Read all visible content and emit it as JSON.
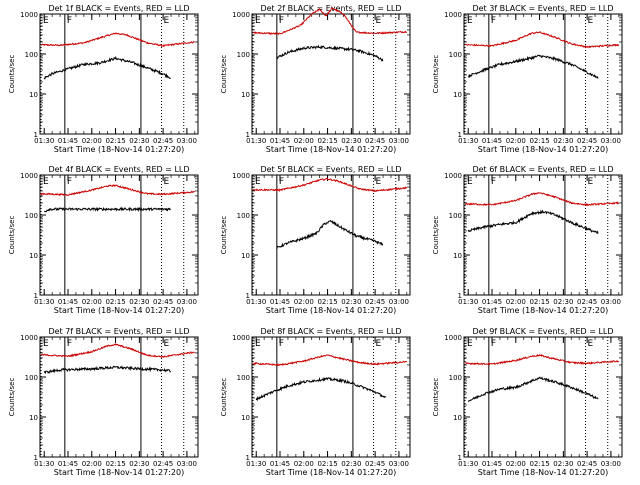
{
  "chart_data": {
    "type": "line",
    "x_ticks": [
      "01:30",
      "01:45",
      "02:00",
      "02:15",
      "02:30",
      "02:45",
      "03:00"
    ],
    "x_range": [
      "01:27:20",
      "03:07:00"
    ],
    "xlabel": "Start Time (18-Nov-14 01:27:20)",
    "ylabel": "Counts/sec",
    "y_scale": "log",
    "ylim": [
      1,
      1000
    ],
    "y_ticks": [
      "1",
      "10",
      "100",
      "1000"
    ],
    "colors": {
      "events": "#000000",
      "lld": "#cc0000"
    },
    "vertical_markers": [
      {
        "label": "E",
        "time": "01:28:00",
        "style": "dotted"
      },
      {
        "label": "F",
        "time": "01:43:00",
        "style": "solid"
      },
      {
        "label": "",
        "time": "02:31:00",
        "style": "solid"
      },
      {
        "label": "E",
        "time": "02:44:00",
        "style": "dotted"
      },
      {
        "label": "",
        "time": "02:58:00",
        "style": "dotted"
      }
    ],
    "panels": [
      {
        "title": "Det 1f BLACK = Events, RED = LLD",
        "series": [
          {
            "key": "lld",
            "start": "01:28",
            "end": "03:05",
            "points": [
              [
                "01:28",
                170
              ],
              [
                "01:40",
                165
              ],
              [
                "01:55",
                190
              ],
              [
                "02:10",
                290
              ],
              [
                "02:15",
                330
              ],
              [
                "02:22",
                300
              ],
              [
                "02:35",
                190
              ],
              [
                "02:45",
                160
              ],
              [
                "02:55",
                180
              ],
              [
                "03:05",
                200
              ]
            ]
          },
          {
            "key": "events",
            "start": "01:30",
            "end": "02:50",
            "points": [
              [
                "01:30",
                25
              ],
              [
                "01:35",
                32
              ],
              [
                "01:43",
                40
              ],
              [
                "01:55",
                55
              ],
              [
                "02:05",
                60
              ],
              [
                "02:15",
                78
              ],
              [
                "02:25",
                62
              ],
              [
                "02:35",
                45
              ],
              [
                "02:45",
                32
              ],
              [
                "02:50",
                25
              ]
            ]
          }
        ]
      },
      {
        "title": "Det 2f BLACK = Events, RED = LLD",
        "series": [
          {
            "key": "lld",
            "start": "01:28",
            "end": "03:05",
            "points": [
              [
                "01:28",
                340
              ],
              [
                "01:45",
                320
              ],
              [
                "01:58",
                520
              ],
              [
                "02:05",
                1000
              ],
              [
                "02:10",
                1300
              ],
              [
                "02:14",
                900
              ],
              [
                "02:18",
                1400
              ],
              [
                "02:25",
                1000
              ],
              [
                "02:33",
                350
              ],
              [
                "02:45",
                330
              ],
              [
                "03:05",
                360
              ]
            ]
          },
          {
            "key": "events",
            "start": "01:43",
            "end": "02:50",
            "points": [
              [
                "01:43",
                80
              ],
              [
                "01:50",
                110
              ],
              [
                "02:00",
                140
              ],
              [
                "02:10",
                150
              ],
              [
                "02:20",
                140
              ],
              [
                "02:30",
                130
              ],
              [
                "02:35",
                120
              ],
              [
                "02:45",
                90
              ],
              [
                "02:50",
                70
              ]
            ]
          }
        ]
      },
      {
        "title": "Det 3f BLACK = Events, RED = LLD",
        "series": [
          {
            "key": "lld",
            "start": "01:28",
            "end": "03:05",
            "points": [
              [
                "01:28",
                170
              ],
              [
                "01:45",
                160
              ],
              [
                "02:00",
                220
              ],
              [
                "02:10",
                330
              ],
              [
                "02:15",
                350
              ],
              [
                "02:25",
                260
              ],
              [
                "02:35",
                180
              ],
              [
                "02:45",
                150
              ],
              [
                "03:05",
                170
              ]
            ]
          },
          {
            "key": "events",
            "start": "01:30",
            "end": "02:52",
            "points": [
              [
                "01:30",
                28
              ],
              [
                "01:40",
                40
              ],
              [
                "01:50",
                55
              ],
              [
                "02:00",
                65
              ],
              [
                "02:10",
                80
              ],
              [
                "02:15",
                90
              ],
              [
                "02:25",
                75
              ],
              [
                "02:35",
                55
              ],
              [
                "02:45",
                35
              ],
              [
                "02:52",
                25
              ]
            ]
          }
        ]
      },
      {
        "title": "Det 4f BLACK = Events, RED = LLD",
        "series": [
          {
            "key": "lld",
            "start": "01:28",
            "end": "03:05",
            "points": [
              [
                "01:28",
                340
              ],
              [
                "01:45",
                320
              ],
              [
                "02:00",
                420
              ],
              [
                "02:10",
                530
              ],
              [
                "02:15",
                550
              ],
              [
                "02:25",
                430
              ],
              [
                "02:35",
                340
              ],
              [
                "02:45",
                330
              ],
              [
                "03:05",
                380
              ]
            ]
          },
          {
            "key": "events",
            "start": "01:30",
            "end": "02:50",
            "points": [
              [
                "01:30",
                120
              ],
              [
                "01:33",
                140
              ],
              [
                "02:00",
                140
              ],
              [
                "02:30",
                140
              ],
              [
                "02:50",
                140
              ]
            ]
          }
        ]
      },
      {
        "title": "Det 5f BLACK = Events, RED = LLD",
        "series": [
          {
            "key": "lld",
            "start": "01:28",
            "end": "03:05",
            "points": [
              [
                "01:28",
                430
              ],
              [
                "01:45",
                420
              ],
              [
                "02:00",
                560
              ],
              [
                "02:10",
                750
              ],
              [
                "02:15",
                800
              ],
              [
                "02:22",
                700
              ],
              [
                "02:35",
                450
              ],
              [
                "02:45",
                400
              ],
              [
                "03:05",
                480
              ]
            ]
          },
          {
            "key": "events",
            "start": "01:43",
            "end": "02:50",
            "points": [
              [
                "01:43",
                15
              ],
              [
                "01:50",
                20
              ],
              [
                "02:00",
                26
              ],
              [
                "02:08",
                35
              ],
              [
                "02:13",
                60
              ],
              [
                "02:17",
                70
              ],
              [
                "02:25",
                45
              ],
              [
                "02:33",
                30
              ],
              [
                "02:45",
                22
              ],
              [
                "02:50",
                18
              ]
            ]
          }
        ]
      },
      {
        "title": "Det 6f BLACK = Events, RED = LLD",
        "series": [
          {
            "key": "lld",
            "start": "01:28",
            "end": "03:05",
            "points": [
              [
                "01:28",
                190
              ],
              [
                "01:45",
                180
              ],
              [
                "02:00",
                230
              ],
              [
                "02:10",
                330
              ],
              [
                "02:15",
                360
              ],
              [
                "02:25",
                280
              ],
              [
                "02:35",
                200
              ],
              [
                "02:45",
                180
              ],
              [
                "03:05",
                200
              ]
            ]
          },
          {
            "key": "events",
            "start": "01:30",
            "end": "02:52",
            "points": [
              [
                "01:30",
                40
              ],
              [
                "01:40",
                50
              ],
              [
                "01:50",
                58
              ],
              [
                "02:00",
                65
              ],
              [
                "02:10",
                110
              ],
              [
                "02:18",
                120
              ],
              [
                "02:25",
                100
              ],
              [
                "02:35",
                65
              ],
              [
                "02:45",
                45
              ],
              [
                "02:52",
                35
              ]
            ]
          }
        ]
      },
      {
        "title": "Det 7f BLACK = Events, RED = LLD",
        "series": [
          {
            "key": "lld",
            "start": "01:28",
            "end": "03:05",
            "points": [
              [
                "01:28",
                360
              ],
              [
                "01:45",
                330
              ],
              [
                "02:00",
                430
              ],
              [
                "02:10",
                600
              ],
              [
                "02:15",
                650
              ],
              [
                "02:25",
                500
              ],
              [
                "02:35",
                350
              ],
              [
                "02:45",
                320
              ],
              [
                "03:05",
                420
              ]
            ]
          },
          {
            "key": "events",
            "start": "01:30",
            "end": "02:50",
            "points": [
              [
                "01:30",
                130
              ],
              [
                "01:40",
                150
              ],
              [
                "02:00",
                160
              ],
              [
                "02:15",
                175
              ],
              [
                "02:30",
                160
              ],
              [
                "02:45",
                150
              ],
              [
                "02:50",
                140
              ]
            ]
          }
        ]
      },
      {
        "title": "Det 8f BLACK = Events, RED = LLD",
        "series": [
          {
            "key": "lld",
            "start": "01:28",
            "end": "03:05",
            "points": [
              [
                "01:28",
                220
              ],
              [
                "01:45",
                200
              ],
              [
                "02:00",
                250
              ],
              [
                "02:10",
                320
              ],
              [
                "02:15",
                350
              ],
              [
                "02:25",
                280
              ],
              [
                "02:35",
                230
              ],
              [
                "02:45",
                210
              ],
              [
                "03:05",
                240
              ]
            ]
          },
          {
            "key": "events",
            "start": "01:30",
            "end": "02:52",
            "points": [
              [
                "01:30",
                28
              ],
              [
                "01:40",
                42
              ],
              [
                "01:50",
                60
              ],
              [
                "02:00",
                75
              ],
              [
                "02:10",
                85
              ],
              [
                "02:15",
                90
              ],
              [
                "02:25",
                80
              ],
              [
                "02:35",
                60
              ],
              [
                "02:45",
                42
              ],
              [
                "02:52",
                30
              ]
            ]
          }
        ]
      },
      {
        "title": "Det 9f BLACK = Events, RED = LLD",
        "series": [
          {
            "key": "lld",
            "start": "01:28",
            "end": "03:05",
            "points": [
              [
                "01:28",
                220
              ],
              [
                "01:45",
                210
              ],
              [
                "02:00",
                260
              ],
              [
                "02:10",
                330
              ],
              [
                "02:15",
                350
              ],
              [
                "02:25",
                280
              ],
              [
                "02:35",
                230
              ],
              [
                "02:45",
                220
              ],
              [
                "03:05",
                250
              ]
            ]
          },
          {
            "key": "events",
            "start": "01:30",
            "end": "02:52",
            "points": [
              [
                "01:30",
                25
              ],
              [
                "01:40",
                38
              ],
              [
                "01:50",
                50
              ],
              [
                "02:00",
                55
              ],
              [
                "02:10",
                80
              ],
              [
                "02:15",
                95
              ],
              [
                "02:25",
                75
              ],
              [
                "02:35",
                55
              ],
              [
                "02:45",
                38
              ],
              [
                "02:52",
                28
              ]
            ]
          }
        ]
      }
    ]
  }
}
